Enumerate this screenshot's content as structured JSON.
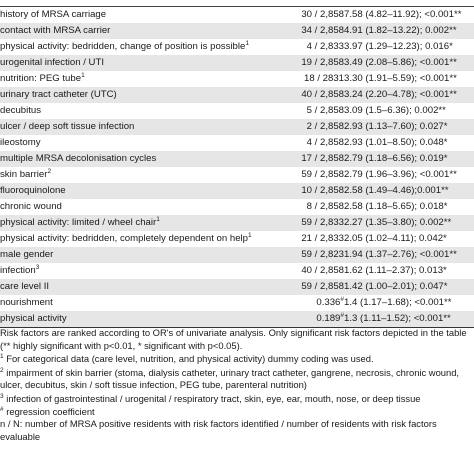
{
  "rows": [
    {
      "factor": "history of MRSA carriage",
      "sup": "",
      "ratio": "30 / 2,858",
      "or_value": "7.58 (4.82–11.92); <0.001**",
      "shaded": false
    },
    {
      "factor": "contact with MRSA carrier",
      "sup": "",
      "ratio": "34 / 2,858",
      "or_value": "4.91 (1.82–13.22); 0.002**",
      "shaded": true
    },
    {
      "factor": "physical activity: bedridden, change of position is possible",
      "sup": "1",
      "ratio": "4 / 2,833",
      "or_value": "3.97 (1.29–12.23); 0.016*",
      "shaded": false
    },
    {
      "factor": "urogenital infection / UTI",
      "sup": "",
      "ratio": "19 / 2,858",
      "or_value": "3.49 (2.08–5.86); <0.001**",
      "shaded": true
    },
    {
      "factor": "nutrition: PEG tube",
      "sup": "1",
      "ratio": "18 / 2831",
      "or_value": "3.30 (1.91–5.59); <0.001**",
      "shaded": false
    },
    {
      "factor": "urinary tract catheter (UTC)",
      "sup": "",
      "ratio": "40 / 2,858",
      "or_value": "3.24 (2.20–4.78); <0.001**",
      "shaded": true
    },
    {
      "factor": "decubitus",
      "sup": "",
      "ratio": "5 / 2,858",
      "or_value": "3.09 (1.5–6.36); 0.002**",
      "shaded": false
    },
    {
      "factor": "ulcer / deep soft tissue infection",
      "sup": "",
      "ratio": "2 / 2,858",
      "or_value": "2.93 (1.13–7.60); 0.027*",
      "shaded": true
    },
    {
      "factor": "ileostomy",
      "sup": "",
      "ratio": "4 / 2,858",
      "or_value": "2.93 (1.01–8.50); 0.048*",
      "shaded": false
    },
    {
      "factor": "multiple MRSA decolonisation cycles",
      "sup": "",
      "ratio": "17 / 2,858",
      "or_value": "2.79 (1.18–6.56); 0.019*",
      "shaded": true
    },
    {
      "factor": "skin barrier",
      "sup": "2",
      "ratio": "59 / 2,858",
      "or_value": "2.79 (1.96–3.96); <0.001**",
      "shaded": false
    },
    {
      "factor": "fluoroquinolone",
      "sup": "",
      "ratio": "10 / 2,858",
      "or_value": "2.58 (1.49–4.46);0.001**",
      "shaded": true
    },
    {
      "factor": "chronic wound",
      "sup": "",
      "ratio": "8 / 2,858",
      "or_value": "2.58 (1.18–5.65); 0.018*",
      "shaded": false
    },
    {
      "factor": "physical activity: limited / wheel chair",
      "sup": "1",
      "ratio": "59 / 2,833",
      "or_value": "2.27 (1.35–3.80); 0.002**",
      "shaded": true
    },
    {
      "factor": "physical activity: bedridden, completely dependent on help",
      "sup": "1",
      "ratio": "21 / 2,833",
      "or_value": "2.05 (1.02–4.11); 0.042*",
      "shaded": false
    },
    {
      "factor": "male gender",
      "sup": "",
      "ratio": "59 / 2,823",
      "or_value": "1.94 (1.37–2.76); <0.001**",
      "shaded": true
    },
    {
      "factor": "infection",
      "sup": "3",
      "ratio": "40 / 2,858",
      "or_value": "1.62 (1.11–2.37); 0.013*",
      "shaded": false
    },
    {
      "factor": "care level II",
      "sup": "",
      "ratio": "59 / 2,858",
      "or_value": "1.42 (1.00–2.01); 0.047*",
      "shaded": true
    },
    {
      "factor": "nourishment",
      "sup": "",
      "ratio": "0.336",
      "ratio_sup": "#",
      "or_value": "1.4 (1.17–1.68); <0.001**",
      "shaded": false
    },
    {
      "factor": "physical activity",
      "sup": "",
      "ratio": "0.189",
      "ratio_sup": "#",
      "or_value": "1.3 (1.11–1.52); <0.001**",
      "shaded": true
    }
  ],
  "notes": {
    "intro": "Risk factors are ranked according to OR's of univariate analysis. Only significant risk factors depicted in the table (** highly significant with p<0.01, * significant with p<0.05).",
    "n1_mark": "1",
    "n1": " For categorical data (care level, nutrition, and physical activity) dummy coding was used.",
    "n2_mark": "2",
    "n2": " impairment of skin barrier (stoma, dialysis catheter, urinary tract catheter, gangrene, necrosis, chronic wound, ulcer, decubitus, skin / soft tissue infection, PEG tube, parenteral nutrition)",
    "n3_mark": "3",
    "n3": " infection of gastrointestinal / urogenital / respiratory tract, skin, eye, ear, mouth, nose, or deep tissue",
    "n4_mark": "#",
    "n4": " regression coefficient",
    "n5": "n / N: number of MRSA positive residents with risk factors identified / number of residents with risk factors evaluable"
  }
}
